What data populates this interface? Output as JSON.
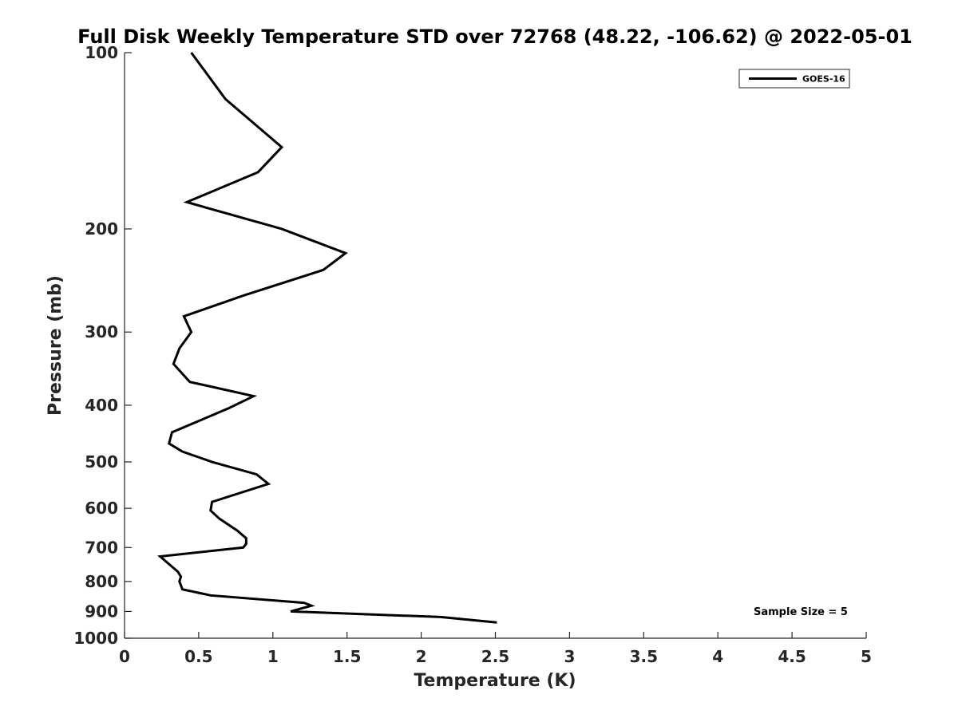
{
  "chart_data": {
    "type": "line",
    "title": "Full Disk Weekly Temperature STD over 72768 (48.22, -106.62) @ 2022-05-01",
    "xlabel": "Temperature (K)",
    "ylabel": "Pressure (mb)",
    "xlim": [
      0,
      5
    ],
    "ylim": [
      100,
      1000
    ],
    "y_scale": "log",
    "y_reversed": true,
    "xticks": [
      "0",
      "0.5",
      "1",
      "1.5",
      "2",
      "2.5",
      "3",
      "3.5",
      "4",
      "4.5",
      "5"
    ],
    "xtick_values": [
      0,
      0.5,
      1,
      1.5,
      2,
      2.5,
      3,
      3.5,
      4,
      4.5,
      5
    ],
    "yticks": [
      "100",
      "200",
      "300",
      "400",
      "500",
      "600",
      "700",
      "800",
      "900",
      "1000"
    ],
    "ytick_values": [
      100,
      200,
      300,
      400,
      500,
      600,
      700,
      800,
      900,
      1000
    ],
    "grid": false,
    "legend_position": "top-right",
    "annotation": "Sample Size = 5",
    "series": [
      {
        "name": "GOES-16",
        "color": "#000000",
        "points": [
          {
            "x": 0.45,
            "p": 100
          },
          {
            "x": 0.68,
            "p": 120
          },
          {
            "x": 1.06,
            "p": 145
          },
          {
            "x": 0.9,
            "p": 160
          },
          {
            "x": 0.42,
            "p": 180
          },
          {
            "x": 1.06,
            "p": 200
          },
          {
            "x": 1.49,
            "p": 220
          },
          {
            "x": 1.34,
            "p": 235
          },
          {
            "x": 0.8,
            "p": 260
          },
          {
            "x": 0.4,
            "p": 282
          },
          {
            "x": 0.45,
            "p": 300
          },
          {
            "x": 0.37,
            "p": 320
          },
          {
            "x": 0.33,
            "p": 340
          },
          {
            "x": 0.44,
            "p": 365
          },
          {
            "x": 0.87,
            "p": 386
          },
          {
            "x": 0.7,
            "p": 405
          },
          {
            "x": 0.32,
            "p": 445
          },
          {
            "x": 0.3,
            "p": 465
          },
          {
            "x": 0.39,
            "p": 480
          },
          {
            "x": 0.59,
            "p": 500
          },
          {
            "x": 0.89,
            "p": 525
          },
          {
            "x": 0.97,
            "p": 545
          },
          {
            "x": 0.59,
            "p": 585
          },
          {
            "x": 0.58,
            "p": 605
          },
          {
            "x": 0.64,
            "p": 625
          },
          {
            "x": 0.76,
            "p": 655
          },
          {
            "x": 0.82,
            "p": 675
          },
          {
            "x": 0.82,
            "p": 690
          },
          {
            "x": 0.8,
            "p": 700
          },
          {
            "x": 0.24,
            "p": 725
          },
          {
            "x": 0.36,
            "p": 770
          },
          {
            "x": 0.38,
            "p": 785
          },
          {
            "x": 0.37,
            "p": 800
          },
          {
            "x": 0.39,
            "p": 825
          },
          {
            "x": 0.58,
            "p": 845
          },
          {
            "x": 1.21,
            "p": 870
          },
          {
            "x": 1.26,
            "p": 880
          },
          {
            "x": 1.12,
            "p": 900
          },
          {
            "x": 2.13,
            "p": 920
          },
          {
            "x": 2.51,
            "p": 940
          }
        ]
      }
    ]
  }
}
